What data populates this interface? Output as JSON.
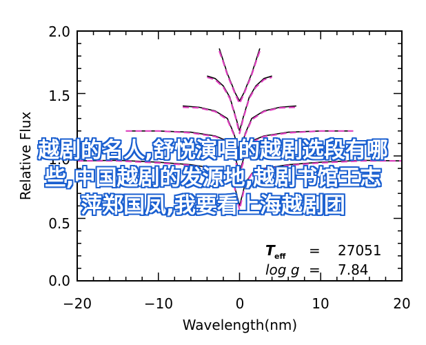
{
  "chart_data": {
    "type": "line",
    "xlabel": "Wavelength(nm)",
    "ylabel": "Relative Flux",
    "xlim": [
      -20,
      20
    ],
    "ylim": [
      0,
      2
    ],
    "x_ticks": [
      "−20",
      "−10",
      "0",
      "10",
      "20"
    ],
    "y_ticks": [
      "0.0",
      "0.5",
      "1.0",
      "1.5",
      "2.0"
    ],
    "grid": false,
    "annotations": {
      "teff_label": "T",
      "teff_sub": "eff",
      "teff_eq": "=",
      "teff_value": "27051",
      "logg_label": "log g",
      "logg_eq": "=",
      "logg_value": "7.84"
    },
    "series": [
      {
        "color": "#000000",
        "x": [
          -20,
          -15,
          -10,
          -6,
          -3,
          -1.5,
          -0.7,
          0,
          0.7,
          1.5,
          3,
          6,
          10,
          15,
          20
        ],
        "y": [
          0.96,
          0.965,
          0.95,
          0.93,
          0.9,
          0.86,
          0.78,
          0.6,
          0.78,
          0.86,
          0.9,
          0.93,
          0.95,
          0.965,
          0.96
        ]
      },
      {
        "color": "#e040c0",
        "x": [
          -20,
          -15,
          -10,
          -6,
          -3,
          -1.5,
          -0.7,
          0,
          0.7,
          1.5,
          3,
          6,
          10,
          15,
          20
        ],
        "y": [
          0.96,
          0.96,
          0.945,
          0.925,
          0.895,
          0.855,
          0.77,
          0.57,
          0.77,
          0.855,
          0.895,
          0.925,
          0.945,
          0.96,
          0.96
        ]
      },
      {
        "color": "#000000",
        "x": [
          -14,
          -10,
          -6,
          -3,
          -1.5,
          -0.7,
          0,
          0.7,
          1.5,
          3,
          6,
          10,
          14
        ],
        "y": [
          1.2,
          1.2,
          1.19,
          1.16,
          1.12,
          1.02,
          0.87,
          1.02,
          1.12,
          1.16,
          1.19,
          1.2,
          1.2
        ]
      },
      {
        "color": "#e040c0",
        "x": [
          -14,
          -10,
          -6,
          -3,
          -1.5,
          -0.7,
          0,
          0.7,
          1.5,
          3,
          6,
          10,
          14
        ],
        "y": [
          1.2,
          1.2,
          1.185,
          1.155,
          1.11,
          1.0,
          0.85,
          1.0,
          1.11,
          1.155,
          1.185,
          1.2,
          1.2
        ]
      },
      {
        "color": "#000000",
        "x": [
          -7,
          -5,
          -3,
          -1.5,
          -0.7,
          0,
          0.7,
          1.5,
          3,
          5,
          7
        ],
        "y": [
          1.4,
          1.39,
          1.36,
          1.3,
          1.18,
          1.02,
          1.18,
          1.3,
          1.36,
          1.39,
          1.4
        ]
      },
      {
        "color": "#e040c0",
        "x": [
          -7,
          -5,
          -3,
          -1.5,
          -0.7,
          0,
          0.7,
          1.5,
          3,
          5,
          7
        ],
        "y": [
          1.39,
          1.385,
          1.355,
          1.29,
          1.17,
          1.0,
          1.17,
          1.29,
          1.355,
          1.385,
          1.39
        ]
      },
      {
        "color": "#000000",
        "x": [
          -4,
          -3,
          -2,
          -1.2,
          -0.5,
          0,
          0.5,
          1.2,
          2,
          3,
          4
        ],
        "y": [
          1.64,
          1.62,
          1.56,
          1.47,
          1.32,
          1.2,
          1.32,
          1.47,
          1.56,
          1.62,
          1.64
        ]
      },
      {
        "color": "#e040c0",
        "x": [
          -4,
          -3,
          -2,
          -1.2,
          -0.5,
          0,
          0.5,
          1.2,
          2,
          3,
          4
        ],
        "y": [
          1.63,
          1.61,
          1.55,
          1.46,
          1.31,
          1.18,
          1.31,
          1.46,
          1.55,
          1.61,
          1.63
        ]
      },
      {
        "color": "#000000",
        "x": [
          -2.5,
          -2,
          -1.5,
          -1,
          -0.5,
          0,
          0.5,
          1,
          1.5,
          2,
          2.5
        ],
        "y": [
          1.86,
          1.76,
          1.66,
          1.58,
          1.5,
          1.44,
          1.5,
          1.58,
          1.66,
          1.76,
          1.86
        ]
      },
      {
        "color": "#e040c0",
        "x": [
          -2.5,
          -2,
          -1.5,
          -1,
          -0.5,
          0,
          0.5,
          1,
          1.5,
          2,
          2.5
        ],
        "y": [
          1.84,
          1.75,
          1.65,
          1.57,
          1.49,
          1.42,
          1.49,
          1.57,
          1.65,
          1.75,
          1.84
        ]
      }
    ]
  },
  "overlay": {
    "line1": "越剧的名人,舒悦演唱的越剧选段有哪",
    "line2": "些,中国越剧的发源地,越剧书馆王志",
    "line3": "萍郑国凤,我要看上海越剧团"
  }
}
